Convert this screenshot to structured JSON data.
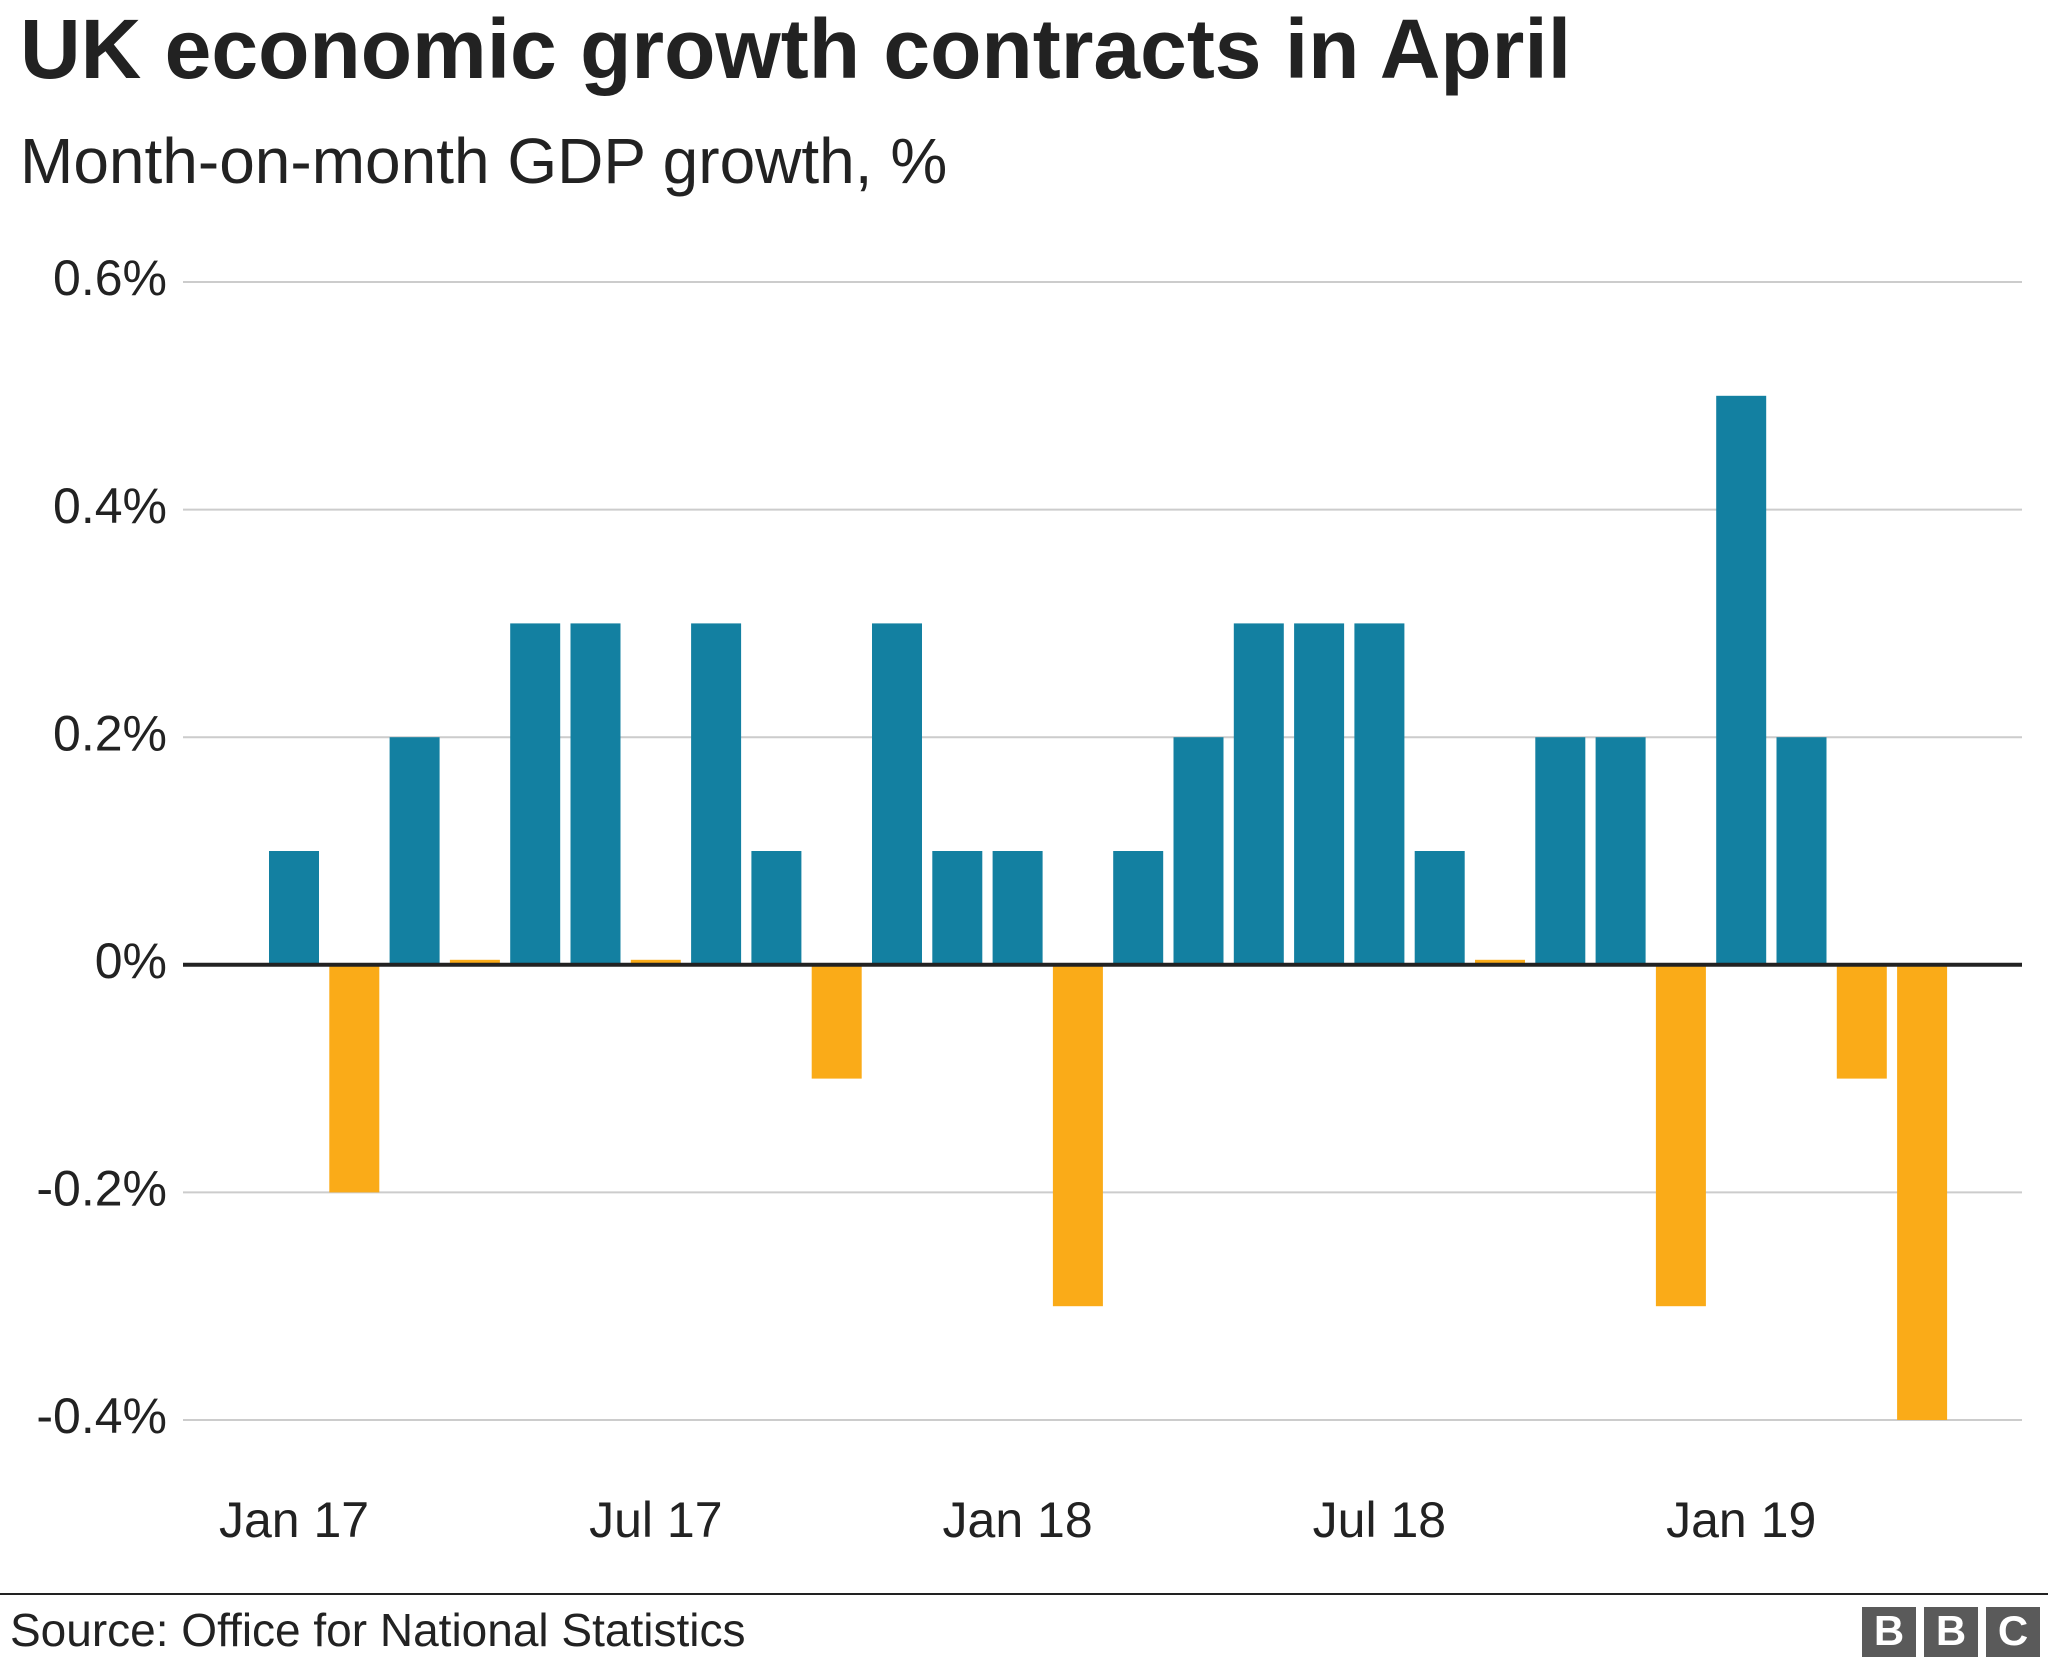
{
  "chart_data": {
    "type": "bar",
    "title": "UK economic growth contracts in April",
    "subtitle": "Month-on-month GDP growth, %",
    "source": "Source: Office for National Statistics",
    "logo": [
      "B",
      "B",
      "C"
    ],
    "categories": [
      "Jan 17",
      null,
      null,
      null,
      null,
      null,
      "Jul 17",
      null,
      null,
      null,
      null,
      null,
      "Jan 18",
      null,
      null,
      null,
      null,
      null,
      "Jul 18",
      null,
      null,
      null,
      null,
      null,
      "Jan 19",
      null,
      null,
      null
    ],
    "values": [
      0.1,
      -0.2,
      0.2,
      0,
      0.3,
      0.3,
      0,
      0.3,
      0.1,
      -0.1,
      0.3,
      0.1,
      0.1,
      -0.3,
      0.1,
      0.2,
      0.3,
      0.3,
      0.3,
      0.1,
      0,
      0.2,
      0.2,
      -0.3,
      0.5,
      0.2,
      -0.1,
      -0.4
    ],
    "color": "#1380a1",
    "negative_color": "#faab18",
    "ylim": [
      -0.4,
      0.6
    ],
    "yticks": [
      {
        "value": -0.4,
        "label": "-0.4%"
      },
      {
        "value": -0.2,
        "label": "-0.2%"
      },
      {
        "value": 0,
        "label": "0%"
      },
      {
        "value": 0.2,
        "label": "0.2%"
      },
      {
        "value": 0.4,
        "label": "0.4%"
      },
      {
        "value": 0.6,
        "label": "0.6%"
      }
    ],
    "grid": true
  }
}
